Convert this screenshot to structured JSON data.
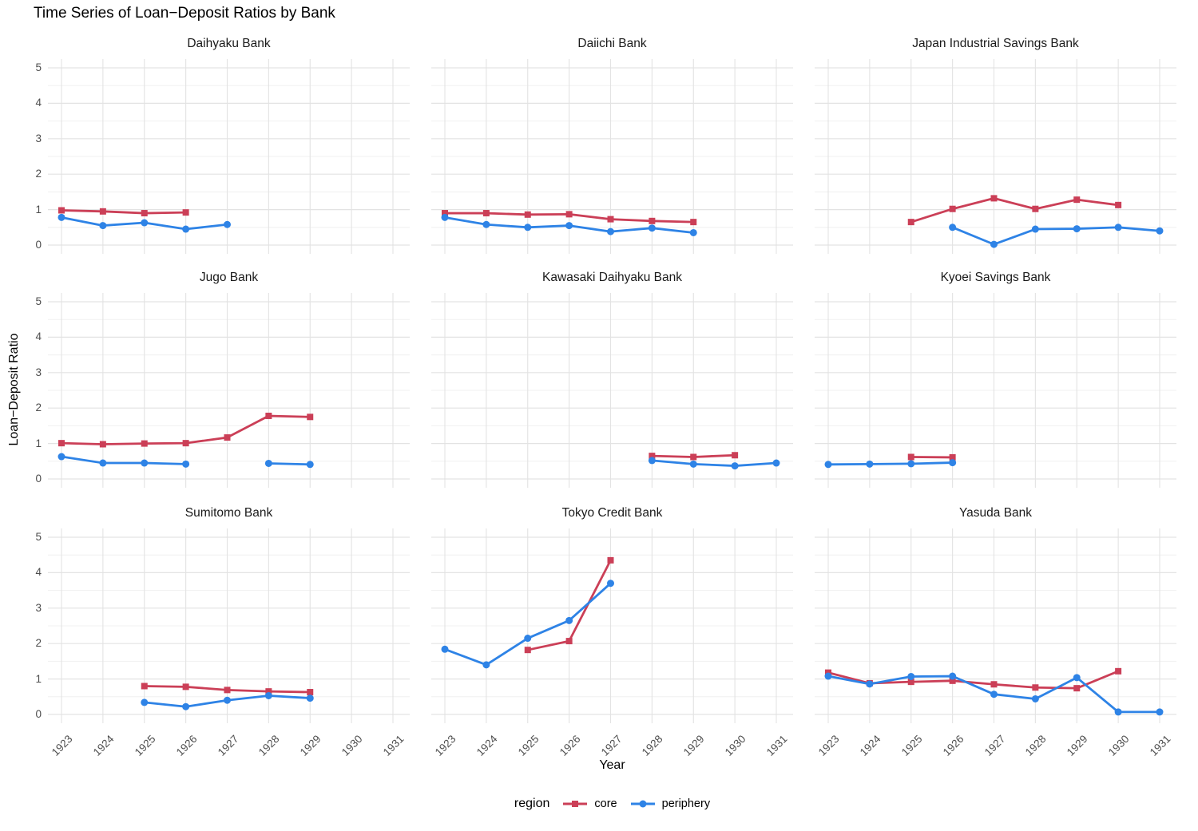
{
  "title": "Time Series of Loan−Deposit Ratios by Bank",
  "y_axis": {
    "label": "Loan−Deposit Ratio",
    "ticks": [
      "0",
      "1",
      "2",
      "3",
      "4",
      "5"
    ],
    "range": [
      0,
      5
    ]
  },
  "x_axis": {
    "label": "Year",
    "ticks": [
      "1923",
      "1924",
      "1925",
      "1926",
      "1927",
      "1928",
      "1929",
      "1930",
      "1931"
    ],
    "range": [
      1923,
      1931
    ]
  },
  "legend": {
    "title": "region",
    "entries": [
      {
        "label": "core",
        "marker": "square"
      },
      {
        "label": "periphery",
        "marker": "circle"
      }
    ]
  },
  "colors": {
    "core": "#CB3F57",
    "periphery": "#2E83E6",
    "grid_major": "#E3E3E3",
    "grid_minor": "#F0F0F0",
    "tick_text": "#4D4D4D"
  },
  "chart_data": {
    "type": "line",
    "grid": "on",
    "legend_position": "bottom",
    "y_minor_step": 0.5,
    "facets": [
      {
        "title": "Daihyaku Bank",
        "series": [
          {
            "name": "core",
            "points": [
              [
                1923,
                0.98
              ],
              [
                1924,
                0.95
              ],
              [
                1925,
                0.9
              ],
              [
                1926,
                0.92
              ]
            ]
          },
          {
            "name": "periphery",
            "points": [
              [
                1923,
                0.78
              ],
              [
                1924,
                0.55
              ],
              [
                1925,
                0.63
              ],
              [
                1926,
                0.45
              ],
              [
                1927,
                0.58
              ]
            ]
          }
        ]
      },
      {
        "title": "Daiichi Bank",
        "series": [
          {
            "name": "core",
            "points": [
              [
                1923,
                0.9
              ],
              [
                1924,
                0.9
              ],
              [
                1925,
                0.86
              ],
              [
                1926,
                0.87
              ],
              [
                1927,
                0.73
              ],
              [
                1928,
                0.68
              ],
              [
                1929,
                0.65
              ]
            ]
          },
          {
            "name": "periphery",
            "points": [
              [
                1923,
                0.78
              ],
              [
                1924,
                0.58
              ],
              [
                1925,
                0.5
              ],
              [
                1926,
                0.55
              ],
              [
                1927,
                0.38
              ],
              [
                1928,
                0.48
              ],
              [
                1929,
                0.35
              ]
            ]
          }
        ]
      },
      {
        "title": "Japan Industrial Savings Bank",
        "series": [
          {
            "name": "core",
            "points": [
              [
                1925,
                0.65
              ],
              [
                1926,
                1.02
              ],
              [
                1927,
                1.32
              ],
              [
                1928,
                1.02
              ],
              [
                1929,
                1.28
              ],
              [
                1930,
                1.13
              ]
            ]
          },
          {
            "name": "periphery",
            "points": [
              [
                1926,
                0.5
              ],
              [
                1927,
                0.02
              ],
              [
                1928,
                0.45
              ],
              [
                1929,
                0.46
              ],
              [
                1930,
                0.5
              ],
              [
                1931,
                0.4
              ]
            ]
          }
        ]
      },
      {
        "title": "Jugo Bank",
        "series": [
          {
            "name": "core",
            "points": [
              [
                1923,
                1.01
              ],
              [
                1924,
                0.98
              ],
              [
                1925,
                1.0
              ],
              [
                1926,
                1.01
              ],
              [
                1927,
                1.17
              ],
              [
                1928,
                1.78
              ],
              [
                1929,
                1.75
              ]
            ]
          },
          {
            "name": "periphery",
            "points": [
              [
                1923,
                0.63
              ],
              [
                1924,
                0.45
              ],
              [
                1925,
                0.45
              ],
              [
                1926,
                0.42
              ],
              [
                1928,
                0.44
              ],
              [
                1929,
                0.41
              ]
            ]
          }
        ]
      },
      {
        "title": "Kawasaki Daihyaku Bank",
        "series": [
          {
            "name": "core",
            "points": [
              [
                1928,
                0.65
              ],
              [
                1929,
                0.62
              ],
              [
                1930,
                0.67
              ]
            ]
          },
          {
            "name": "periphery",
            "points": [
              [
                1928,
                0.52
              ],
              [
                1929,
                0.42
              ],
              [
                1930,
                0.37
              ],
              [
                1931,
                0.45
              ]
            ]
          }
        ]
      },
      {
        "title": "Kyoei Savings Bank",
        "series": [
          {
            "name": "core",
            "points": [
              [
                1925,
                0.62
              ],
              [
                1926,
                0.61
              ]
            ]
          },
          {
            "name": "periphery",
            "points": [
              [
                1923,
                0.41
              ],
              [
                1924,
                0.42
              ],
              [
                1925,
                0.43
              ],
              [
                1926,
                0.46
              ]
            ]
          }
        ]
      },
      {
        "title": "Sumitomo Bank",
        "series": [
          {
            "name": "core",
            "points": [
              [
                1925,
                0.8
              ],
              [
                1926,
                0.78
              ],
              [
                1927,
                0.69
              ],
              [
                1928,
                0.65
              ],
              [
                1929,
                0.63
              ]
            ]
          },
          {
            "name": "periphery",
            "points": [
              [
                1925,
                0.34
              ],
              [
                1926,
                0.22
              ],
              [
                1927,
                0.4
              ],
              [
                1928,
                0.53
              ],
              [
                1929,
                0.46
              ]
            ]
          }
        ]
      },
      {
        "title": "Tokyo Credit Bank",
        "series": [
          {
            "name": "core",
            "points": [
              [
                1925,
                1.82
              ],
              [
                1926,
                2.07
              ],
              [
                1927,
                4.35
              ]
            ]
          },
          {
            "name": "periphery",
            "points": [
              [
                1923,
                1.84
              ],
              [
                1924,
                1.4
              ],
              [
                1925,
                2.15
              ],
              [
                1926,
                2.65
              ],
              [
                1927,
                3.7
              ]
            ]
          }
        ]
      },
      {
        "title": "Yasuda Bank",
        "series": [
          {
            "name": "core",
            "points": [
              [
                1923,
                1.18
              ],
              [
                1924,
                0.88
              ],
              [
                1925,
                0.92
              ],
              [
                1926,
                0.95
              ],
              [
                1927,
                0.85
              ],
              [
                1928,
                0.76
              ],
              [
                1929,
                0.74
              ],
              [
                1930,
                1.22
              ]
            ]
          },
          {
            "name": "periphery",
            "points": [
              [
                1923,
                1.08
              ],
              [
                1924,
                0.86
              ],
              [
                1925,
                1.07
              ],
              [
                1926,
                1.08
              ],
              [
                1927,
                0.57
              ],
              [
                1928,
                0.44
              ],
              [
                1929,
                1.04
              ],
              [
                1930,
                0.07
              ],
              [
                1931,
                0.07
              ]
            ]
          }
        ]
      }
    ]
  }
}
